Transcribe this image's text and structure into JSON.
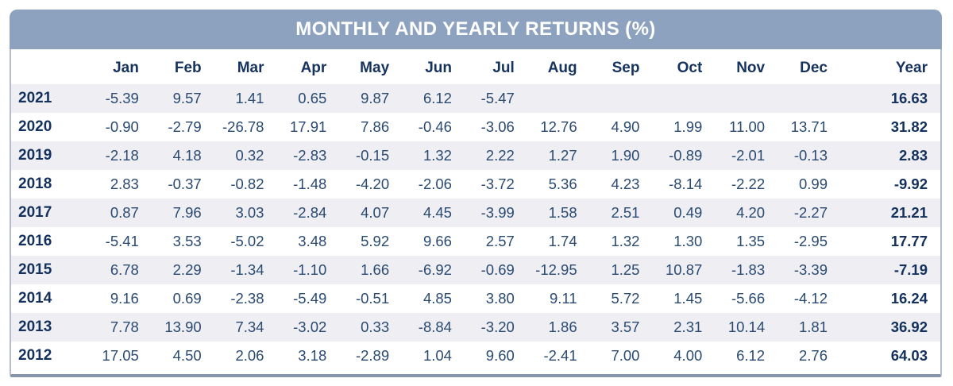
{
  "title": "MONTHLY AND YEARLY RETURNS (%)",
  "colors": {
    "title_bar_bg": "#8ca2bf",
    "title_text": "#ffffff",
    "header_text": "#16335f",
    "cell_text": "#2a4a72",
    "bold_text": "#13315c",
    "stripe_bg": "#efeff3",
    "border_side": "#b4bccb",
    "border_bottom": "#8794ae"
  },
  "chart_data": {
    "type": "table",
    "title": "MONTHLY AND YEARLY RETURNS (%)",
    "columns": [
      "Jan",
      "Feb",
      "Mar",
      "Apr",
      "May",
      "Jun",
      "Jul",
      "Aug",
      "Sep",
      "Oct",
      "Nov",
      "Dec",
      "Year"
    ],
    "rows": [
      {
        "year": "2021",
        "months": [
          -5.39,
          9.57,
          1.41,
          0.65,
          9.87,
          6.12,
          -5.47,
          null,
          null,
          null,
          null,
          null
        ],
        "year_total": 16.63
      },
      {
        "year": "2020",
        "months": [
          -0.9,
          -2.79,
          -26.78,
          17.91,
          7.86,
          -0.46,
          -3.06,
          12.76,
          4.9,
          1.99,
          11.0,
          13.71
        ],
        "year_total": 31.82
      },
      {
        "year": "2019",
        "months": [
          -2.18,
          4.18,
          0.32,
          -2.83,
          -0.15,
          1.32,
          2.22,
          1.27,
          1.9,
          -0.89,
          -2.01,
          -0.13
        ],
        "year_total": 2.83
      },
      {
        "year": "2018",
        "months": [
          2.83,
          -0.37,
          -0.82,
          -1.48,
          -4.2,
          -2.06,
          -3.72,
          5.36,
          4.23,
          -8.14,
          -2.22,
          0.99
        ],
        "year_total": -9.92
      },
      {
        "year": "2017",
        "months": [
          0.87,
          7.96,
          3.03,
          -2.84,
          4.07,
          4.45,
          -3.99,
          1.58,
          2.51,
          0.49,
          4.2,
          -2.27
        ],
        "year_total": 21.21
      },
      {
        "year": "2016",
        "months": [
          -5.41,
          3.53,
          -5.02,
          3.48,
          5.92,
          9.66,
          2.57,
          1.74,
          1.32,
          1.3,
          1.35,
          -2.95
        ],
        "year_total": 17.77
      },
      {
        "year": "2015",
        "months": [
          6.78,
          2.29,
          -1.34,
          -1.1,
          1.66,
          -6.92,
          -0.69,
          -12.95,
          1.25,
          10.87,
          -1.83,
          -3.39
        ],
        "year_total": -7.19
      },
      {
        "year": "2014",
        "months": [
          9.16,
          0.69,
          -2.38,
          -5.49,
          -0.51,
          4.85,
          3.8,
          9.11,
          5.72,
          1.45,
          -5.66,
          -4.12
        ],
        "year_total": 16.24
      },
      {
        "year": "2013",
        "months": [
          7.78,
          13.9,
          7.34,
          -3.02,
          0.33,
          -8.84,
          -3.2,
          1.86,
          3.57,
          2.31,
          10.14,
          1.81
        ],
        "year_total": 36.92
      },
      {
        "year": "2012",
        "months": [
          17.05,
          4.5,
          2.06,
          3.18,
          -2.89,
          1.04,
          9.6,
          -2.41,
          7.0,
          4.0,
          6.12,
          2.76
        ],
        "year_total": 64.03
      }
    ]
  }
}
